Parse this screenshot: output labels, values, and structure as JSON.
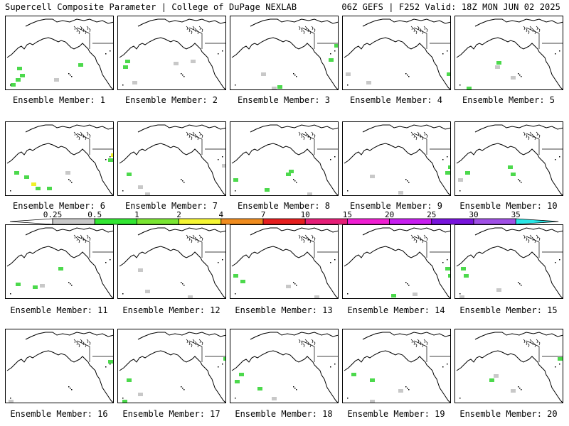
{
  "header": {
    "left": "Supercell Composite Parameter | College of DuPage NEXLAB",
    "right": "06Z GEFS | F252 Valid: 18Z MON JUN 02 2025"
  },
  "members": [
    {
      "label": "Ensemble Member: 1",
      "blobs": [
        [
          9,
          95,
          "g"
        ],
        [
          16,
          88,
          "g"
        ],
        [
          22,
          82,
          "g"
        ],
        [
          18,
          72,
          "g"
        ],
        [
          70,
          88,
          "k"
        ],
        [
          104,
          67,
          "g"
        ]
      ]
    },
    {
      "label": "Ensemble Member: 2",
      "blobs": [
        [
          9,
          70,
          "g"
        ],
        [
          12,
          62,
          "g"
        ],
        [
          22,
          92,
          "k"
        ],
        [
          80,
          65,
          "k"
        ],
        [
          104,
          62,
          "k"
        ]
      ]
    },
    {
      "label": "Ensemble Member: 3",
      "blobs": [
        [
          45,
          80,
          "k"
        ],
        [
          60,
          100,
          "k"
        ],
        [
          68,
          98,
          "g"
        ],
        [
          148,
          40,
          "g"
        ],
        [
          140,
          60,
          "g"
        ]
      ]
    },
    {
      "label": "Ensemble Member: 4",
      "blobs": [
        [
          6,
          80,
          "k"
        ],
        [
          35,
          92,
          "k"
        ],
        [
          148,
          80,
          "g"
        ],
        [
          155,
          40,
          "g"
        ],
        [
          166,
          98,
          "g"
        ]
      ]
    },
    {
      "label": "Ensemble Member: 5",
      "blobs": [
        [
          58,
          70,
          "k"
        ],
        [
          60,
          64,
          "g"
        ],
        [
          18,
          100,
          "g"
        ],
        [
          80,
          85,
          "k"
        ]
      ]
    },
    {
      "label": "Ensemble Member: 6",
      "blobs": [
        [
          14,
          70,
          "g"
        ],
        [
          28,
          76,
          "g"
        ],
        [
          38,
          86,
          "y"
        ],
        [
          44,
          92,
          "g"
        ],
        [
          60,
          92,
          "g"
        ],
        [
          150,
          45,
          "y"
        ],
        [
          146,
          52,
          "g"
        ],
        [
          86,
          70,
          "k"
        ]
      ]
    },
    {
      "label": "Ensemble Member: 7",
      "blobs": [
        [
          14,
          72,
          "g"
        ],
        [
          30,
          90,
          "k"
        ],
        [
          148,
          60,
          "k"
        ],
        [
          40,
          100,
          "k"
        ]
      ]
    },
    {
      "label": "Ensemble Member: 8",
      "blobs": [
        [
          80,
          72,
          "g"
        ],
        [
          84,
          68,
          "g"
        ],
        [
          50,
          94,
          "g"
        ],
        [
          6,
          80,
          "g"
        ],
        [
          110,
          100,
          "k"
        ]
      ]
    },
    {
      "label": "Ensemble Member: 9",
      "blobs": [
        [
          150,
          62,
          "g"
        ],
        [
          146,
          70,
          "g"
        ],
        [
          40,
          75,
          "k"
        ],
        [
          80,
          98,
          "k"
        ]
      ]
    },
    {
      "label": "Ensemble Member: 10",
      "blobs": [
        [
          16,
          70,
          "g"
        ],
        [
          76,
          62,
          "g"
        ],
        [
          80,
          72,
          "g"
        ],
        [
          6,
          80,
          "k"
        ]
      ]
    },
    {
      "label": "Ensemble Member: 11",
      "blobs": [
        [
          16,
          82,
          "g"
        ],
        [
          40,
          86,
          "g"
        ],
        [
          76,
          60,
          "g"
        ],
        [
          50,
          84,
          "k"
        ]
      ]
    },
    {
      "label": "Ensemble Member: 12",
      "blobs": [
        [
          30,
          62,
          "k"
        ],
        [
          40,
          92,
          "k"
        ],
        [
          156,
          70,
          "g"
        ],
        [
          100,
          100,
          "k"
        ]
      ]
    },
    {
      "label": "Ensemble Member: 13",
      "blobs": [
        [
          6,
          70,
          "g"
        ],
        [
          16,
          78,
          "g"
        ],
        [
          80,
          85,
          "k"
        ],
        [
          120,
          100,
          "k"
        ]
      ]
    },
    {
      "label": "Ensemble Member: 14",
      "blobs": [
        [
          146,
          60,
          "g"
        ],
        [
          150,
          70,
          "g"
        ],
        [
          70,
          98,
          "g"
        ],
        [
          100,
          96,
          "k"
        ]
      ]
    },
    {
      "label": "Ensemble Member: 15",
      "blobs": [
        [
          10,
          60,
          "g"
        ],
        [
          14,
          70,
          "g"
        ],
        [
          60,
          90,
          "k"
        ],
        [
          8,
          100,
          "k"
        ]
      ]
    },
    {
      "label": "Ensemble Member: 16",
      "blobs": [
        [
          146,
          44,
          "g"
        ],
        [
          6,
          100,
          "k"
        ]
      ]
    },
    {
      "label": "Ensemble Member: 17",
      "blobs": [
        [
          14,
          70,
          "g"
        ],
        [
          8,
          100,
          "g"
        ],
        [
          150,
          40,
          "g"
        ],
        [
          30,
          90,
          "k"
        ]
      ]
    },
    {
      "label": "Ensemble Member: 18",
      "blobs": [
        [
          14,
          62,
          "g"
        ],
        [
          8,
          72,
          "g"
        ],
        [
          40,
          82,
          "g"
        ],
        [
          60,
          96,
          "k"
        ]
      ]
    },
    {
      "label": "Ensemble Member: 19",
      "blobs": [
        [
          14,
          62,
          "g"
        ],
        [
          40,
          70,
          "g"
        ],
        [
          80,
          85,
          "k"
        ],
        [
          40,
          100,
          "k"
        ]
      ]
    },
    {
      "label": "Ensemble Member: 20",
      "blobs": [
        [
          50,
          70,
          "g"
        ],
        [
          56,
          64,
          "k"
        ],
        [
          80,
          85,
          "k"
        ],
        [
          146,
          40,
          "g"
        ]
      ]
    }
  ],
  "colorbar": {
    "ticks": [
      "0.25",
      "0.5",
      "1",
      "2",
      "4",
      "7",
      "10",
      "15",
      "20",
      "25",
      "30",
      "35"
    ],
    "colors": [
      "#ffffff",
      "#c8c8c8",
      "#32e632",
      "#7ae632",
      "#f5f532",
      "#f08c1e",
      "#e61e1e",
      "#e61e78",
      "#f01ed2",
      "#c81ef0",
      "#7814dc",
      "#a050e6",
      "#28e6e6"
    ]
  },
  "legend_colors": {
    "g": "#4cd94c",
    "k": "#c8c8c8",
    "y": "#f0f028"
  }
}
